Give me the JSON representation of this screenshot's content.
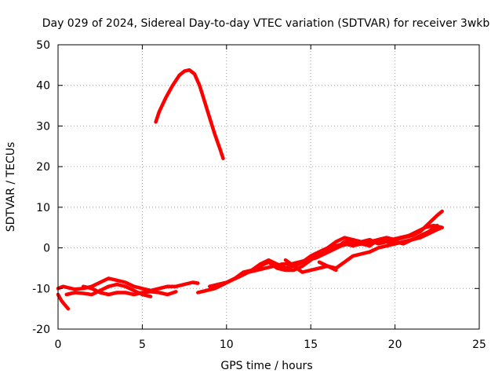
{
  "chart_data": {
    "type": "line",
    "title": "Day 029 of 2024, Sidereal Day-to-day VTEC variation (SDTVAR) for receiver 3wkb",
    "xlabel": "GPS time / hours",
    "ylabel": "SDTVAR / TECUs",
    "xlim": [
      0,
      25
    ],
    "ylim": [
      -20,
      50
    ],
    "xticks": [
      0,
      5,
      10,
      15,
      20,
      25
    ],
    "yticks": [
      -20,
      -10,
      0,
      10,
      20,
      30,
      40,
      50
    ],
    "grid": true,
    "legend": "none",
    "color": "#ff0000",
    "series": [
      {
        "x": [
          5.8,
          6.0,
          6.4,
          6.8,
          7.2,
          7.5,
          7.8,
          8.1,
          8.4,
          8.7,
          9.0,
          9.3,
          9.6,
          9.8
        ],
        "y": [
          31.0,
          33.5,
          37.0,
          40.0,
          42.5,
          43.5,
          43.8,
          42.8,
          40.0,
          36.0,
          32.0,
          28.0,
          24.5,
          22.0
        ]
      },
      {
        "x": [
          0.0,
          0.3,
          0.6,
          1.0,
          1.5,
          2.0,
          2.5,
          3.0,
          3.5,
          4.0,
          4.5,
          5.0,
          5.5,
          6.0,
          6.5,
          7.0,
          7.5,
          8.0,
          8.3
        ],
        "y": [
          -10.0,
          -9.5,
          -9.8,
          -10.2,
          -10.0,
          -9.5,
          -8.5,
          -7.5,
          -8.0,
          -8.5,
          -9.5,
          -10.0,
          -10.5,
          -10.0,
          -9.5,
          -9.5,
          -9.0,
          -8.5,
          -8.7
        ]
      },
      {
        "x": [
          0.0,
          0.2,
          0.4,
          0.6
        ],
        "y": [
          -11.5,
          -13.0,
          -14.0,
          -15.0
        ]
      },
      {
        "x": [
          0.5,
          1.0,
          1.5,
          2.0,
          2.5,
          3.0,
          3.5,
          4.0,
          4.5,
          5.0,
          5.5
        ],
        "y": [
          -11.5,
          -11.0,
          -11.2,
          -11.5,
          -10.5,
          -9.5,
          -9.0,
          -9.5,
          -10.5,
          -11.5,
          -12.0
        ]
      },
      {
        "x": [
          1.5,
          2.0,
          2.5,
          3.0,
          3.5,
          4.0,
          4.5,
          5.0,
          5.5,
          6.0,
          6.5,
          7.0
        ],
        "y": [
          -9.5,
          -10.0,
          -11.0,
          -11.5,
          -11.0,
          -11.0,
          -11.5,
          -11.0,
          -10.8,
          -11.0,
          -11.5,
          -10.8
        ]
      },
      {
        "x": [
          8.3,
          8.8,
          9.3,
          9.8,
          10.3,
          10.8,
          11.3,
          11.8,
          12.3,
          12.8,
          13.3,
          13.8,
          14.3,
          14.8,
          15.3,
          15.8,
          16.3,
          16.8,
          17.3,
          17.8,
          18.3,
          18.8,
          19.3,
          19.8,
          20.3,
          20.8,
          21.3,
          21.8,
          22.3,
          22.8
        ],
        "y": [
          -11.0,
          -10.5,
          -10.0,
          -9.0,
          -8.0,
          -7.0,
          -6.0,
          -5.5,
          -5.0,
          -4.5,
          -4.0,
          -4.0,
          -3.5,
          -3.0,
          -2.5,
          -1.5,
          -0.5,
          0.5,
          1.0,
          1.5,
          1.0,
          1.5,
          1.5,
          2.0,
          2.5,
          3.0,
          4.0,
          5.0,
          5.5,
          5.0
        ]
      },
      {
        "x": [
          9.0,
          9.5,
          10.0,
          10.5,
          11.0,
          11.5,
          12.0,
          12.5,
          13.0,
          13.5,
          14.0,
          14.5,
          15.0,
          15.5,
          16.0,
          16.5,
          17.0,
          17.5,
          18.0,
          18.5,
          19.0,
          19.5,
          20.0,
          20.5,
          21.0,
          21.5,
          22.0,
          22.5,
          22.8
        ],
        "y": [
          -9.5,
          -9.0,
          -8.5,
          -7.5,
          -6.5,
          -5.5,
          -4.5,
          -3.5,
          -5.0,
          -5.5,
          -5.5,
          -4.5,
          -3.0,
          -1.5,
          -0.5,
          0.5,
          1.0,
          0.5,
          1.0,
          1.5,
          2.0,
          2.5,
          2.0,
          2.5,
          3.0,
          4.0,
          6.0,
          8.0,
          9.0
        ]
      },
      {
        "x": [
          10.5,
          11.0,
          11.5,
          12.0,
          12.5,
          13.0,
          13.5,
          14.0,
          14.5,
          15.0,
          15.5,
          16.0,
          16.5,
          17.0,
          17.5,
          18.0,
          18.5,
          19.0,
          19.5,
          20.0,
          20.5,
          21.0,
          21.5,
          22.0,
          22.5,
          22.8
        ],
        "y": [
          -7.5,
          -6.0,
          -5.5,
          -4.0,
          -3.0,
          -4.0,
          -5.0,
          -4.5,
          -3.5,
          -2.0,
          -1.0,
          0.0,
          1.5,
          2.5,
          2.0,
          1.5,
          2.0,
          1.0,
          1.5,
          1.0,
          1.5,
          2.0,
          2.5,
          3.5,
          4.5,
          5.0
        ]
      },
      {
        "x": [
          13.5,
          14.0,
          14.5,
          15.0,
          15.5,
          16.0,
          16.5,
          17.0,
          17.5,
          18.0,
          18.5,
          19.0,
          19.5,
          20.0,
          20.5,
          21.0
        ],
        "y": [
          -3.0,
          -4.5,
          -6.0,
          -5.5,
          -5.0,
          -4.5,
          -5.0,
          -3.5,
          -2.0,
          -1.5,
          -1.0,
          0.0,
          0.5,
          1.0,
          1.5,
          2.0
        ]
      },
      {
        "x": [
          15.5,
          16.0,
          16.5
        ],
        "y": [
          -3.5,
          -4.5,
          -5.5
        ]
      },
      {
        "x": [
          16.5,
          17.0,
          17.5,
          18.0,
          18.5,
          19.0,
          19.5,
          20.0,
          20.5,
          21.0,
          21.5,
          22.0,
          22.5
        ],
        "y": [
          0.0,
          1.5,
          2.0,
          1.0,
          0.5,
          2.0,
          2.5,
          1.5,
          1.0,
          2.0,
          3.0,
          4.0,
          5.5
        ]
      }
    ]
  }
}
